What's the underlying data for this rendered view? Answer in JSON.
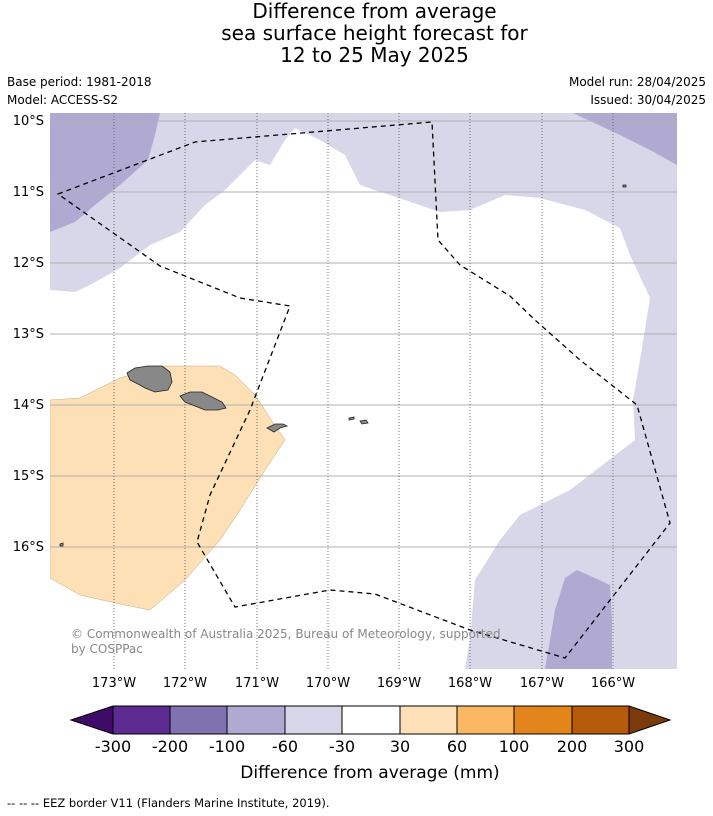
{
  "title": {
    "line1": "Difference from average",
    "line2": "sea surface height forecast for",
    "line3": "12 to 25 May 2025"
  },
  "meta": {
    "base_period": "Base period: 1981-2018",
    "model": "Model: ACCESS-S2",
    "model_run": "Model run: 28/04/2025",
    "issued": "Issued: 30/04/2025"
  },
  "map": {
    "lat_labels": [
      "10°S",
      "11°S",
      "12°S",
      "13°S",
      "14°S",
      "15°S",
      "16°S"
    ],
    "lon_labels": [
      "173°W",
      "172°W",
      "171°W",
      "170°W",
      "169°W",
      "168°W",
      "167°W",
      "166°W"
    ],
    "copyright_line1": "© Commonwealth of Australia 2025, Bureau of Meteorology, supported",
    "copyright_line2": "by COSPPac",
    "colors": {
      "minus100_minus60": "#b0aad3",
      "minus60_minus30": "#d7d7e9",
      "neutral": "#ffffff",
      "plus30_plus60": "#fde0b5",
      "land": "#888888",
      "gridline": "#b0b0b0",
      "eez": "#000000"
    }
  },
  "colorbar": {
    "title": "Difference from average (mm)",
    "tick_labels": [
      "-300",
      "-200",
      "-100",
      "-60",
      "-30",
      "30",
      "60",
      "100",
      "200",
      "300"
    ],
    "colors": [
      "#3f0a68",
      "#5e2b92",
      "#8072b0",
      "#b0aad3",
      "#d7d7e9",
      "#ffffff",
      "#fde0b5",
      "#fbb761",
      "#e2851a",
      "#b55a09",
      "#7b3a07"
    ]
  },
  "footer": "--  --  -- EEZ border V11 (Flanders Marine Institute, 2019)."
}
